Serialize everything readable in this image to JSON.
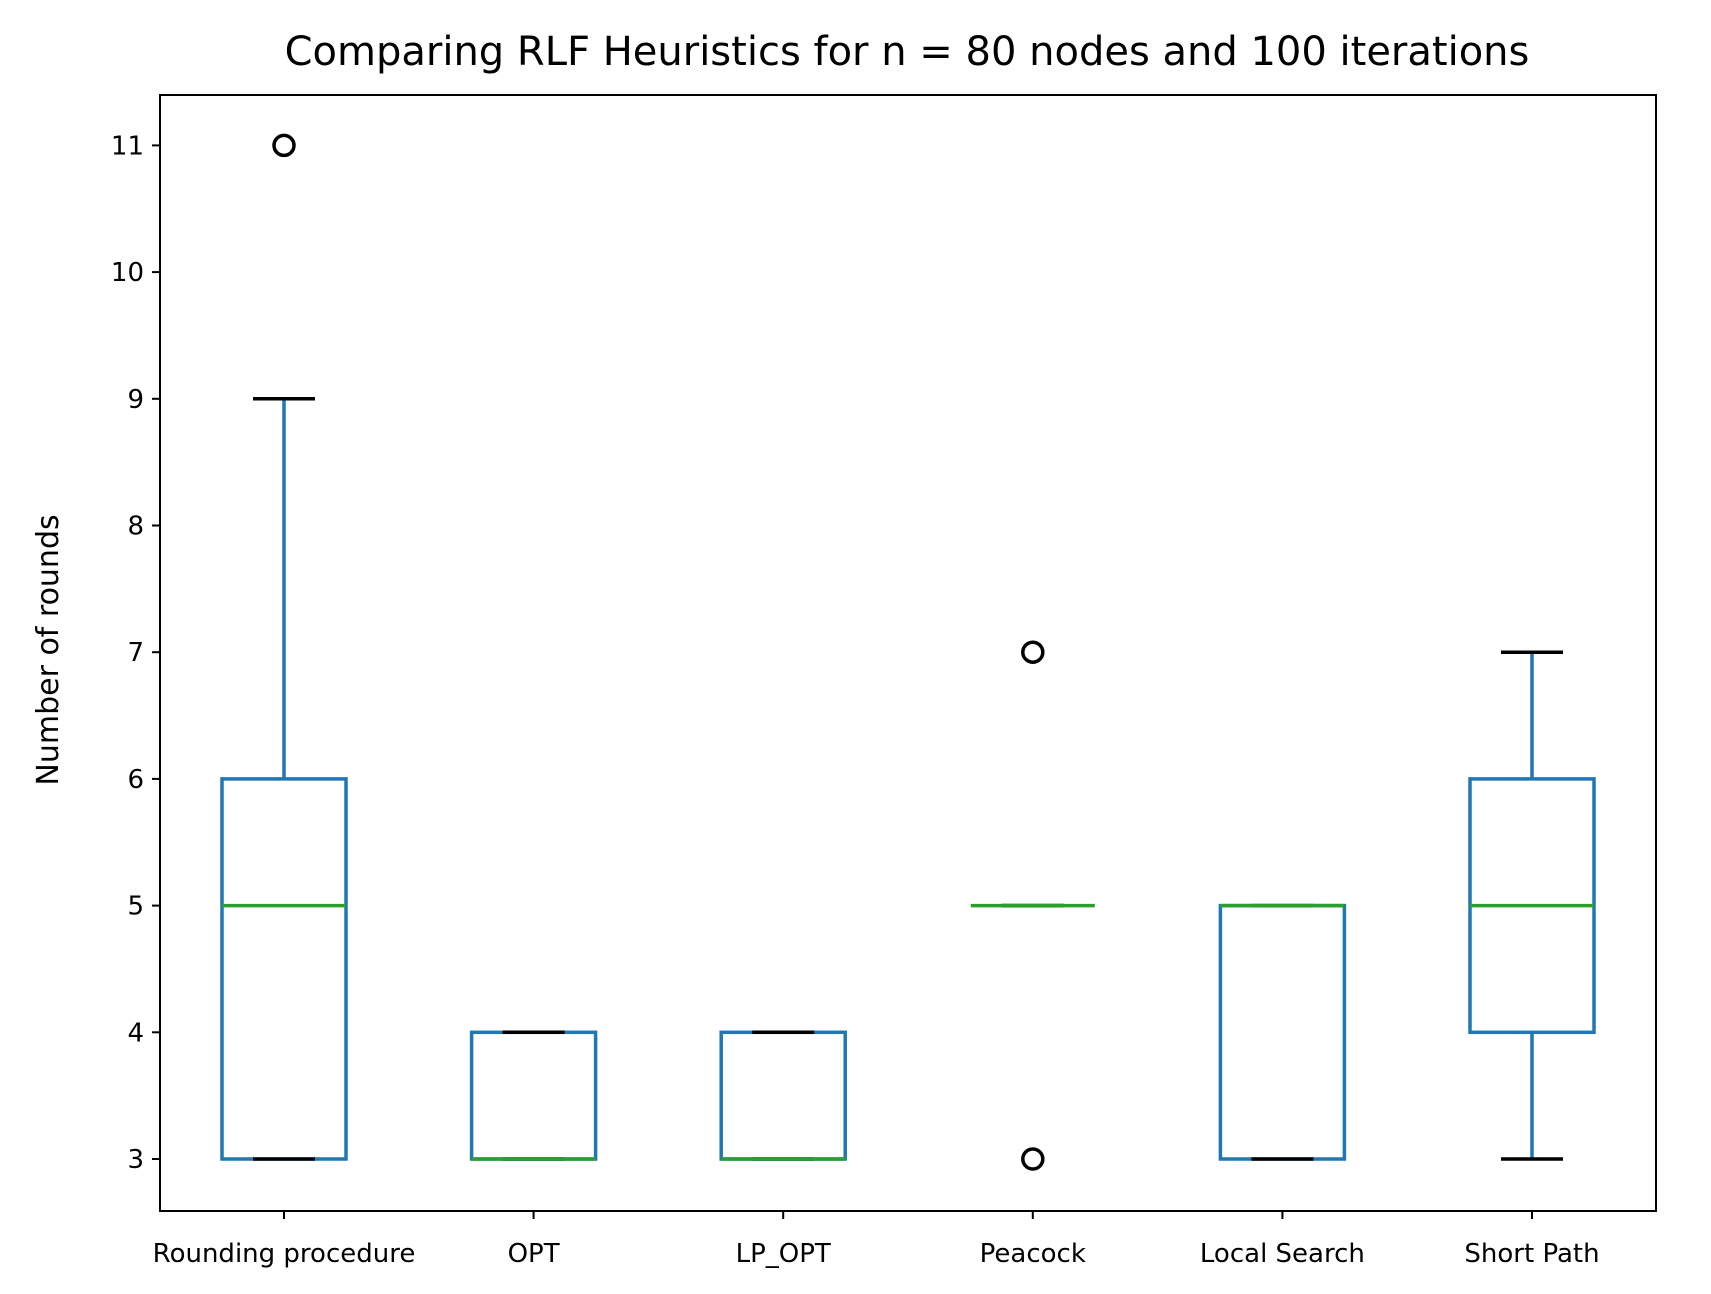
{
  "chart_data": {
    "type": "box",
    "title": "Comparing RLF Heuristics for n = 80 nodes and 100 iterations",
    "xlabel": "",
    "ylabel": "Number of rounds",
    "ylim": [
      2.6,
      11.4
    ],
    "yticks": [
      3,
      4,
      5,
      6,
      7,
      8,
      9,
      10,
      11
    ],
    "categories": [
      "Rounding procedure",
      "OPT",
      "LP_OPT",
      "Peacock",
      "Local Search",
      "Short Path"
    ],
    "boxes": [
      {
        "label": "Rounding procedure",
        "whisker_low": 3,
        "q1": 3,
        "median": 5,
        "q3": 6,
        "whisker_high": 9,
        "outliers": [
          11
        ]
      },
      {
        "label": "OPT",
        "whisker_low": 3,
        "q1": 3,
        "median": 3,
        "q3": 4,
        "whisker_high": 4,
        "outliers": []
      },
      {
        "label": "LP_OPT",
        "whisker_low": 3,
        "q1": 3,
        "median": 3,
        "q3": 4,
        "whisker_high": 4,
        "outliers": []
      },
      {
        "label": "Peacock",
        "whisker_low": 5,
        "q1": 5,
        "median": 5,
        "q3": 5,
        "whisker_high": 5,
        "outliers": [
          3,
          7
        ]
      },
      {
        "label": "Local Search",
        "whisker_low": 3,
        "q1": 3,
        "median": 5,
        "q3": 5,
        "whisker_high": 5,
        "outliers": []
      },
      {
        "label": "Short Path",
        "whisker_low": 3,
        "q1": 4,
        "median": 5,
        "q3": 6,
        "whisker_high": 7,
        "outliers": []
      }
    ],
    "colors": {
      "box": "#1f77b4",
      "median": "#2ca02c",
      "cap": "#000000",
      "outlier": "#000000"
    },
    "grid": false,
    "legend": "none"
  }
}
